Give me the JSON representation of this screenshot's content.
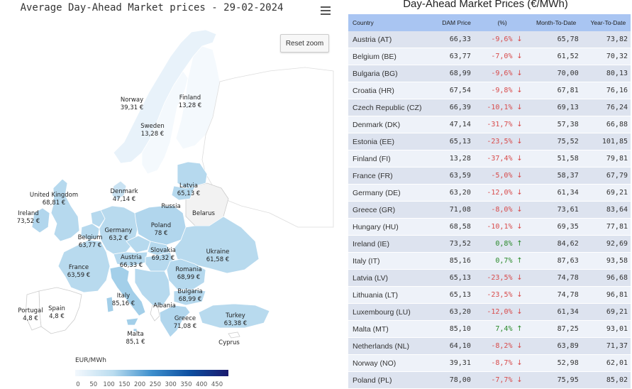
{
  "map": {
    "title": "Average Day-Ahead Market prices - 29-02-2024",
    "reset_zoom": "Reset zoom",
    "menu_icon": "hamburger-menu-icon",
    "legend": {
      "title": "EUR/MWh",
      "ticks": [
        "0",
        "50",
        "100",
        "150",
        "200",
        "250",
        "300",
        "350",
        "400",
        "450"
      ],
      "colors": [
        "#f3f8fd",
        "#b9dcef",
        "#3d8fcd",
        "#0d4ea0",
        "#1a1a6e"
      ]
    },
    "labels": [
      {
        "name": "Norway",
        "value": "39,31 €"
      },
      {
        "name": "Finland",
        "value": "13,28 €"
      },
      {
        "name": "Sweden",
        "value": "13,28 €"
      },
      {
        "name": "Latvia",
        "value": "65,13 €"
      },
      {
        "name": "Russia",
        "value": ""
      },
      {
        "name": "Belarus",
        "value": ""
      },
      {
        "name": "United Kingdom",
        "value": "68,81 €"
      },
      {
        "name": "Ireland",
        "value": "73,52 €"
      },
      {
        "name": "Denmark",
        "value": "47,14 €"
      },
      {
        "name": "Poland",
        "value": "78 €"
      },
      {
        "name": "Germany",
        "value": "63,2 €"
      },
      {
        "name": "Belgium",
        "value": "63,77 €"
      },
      {
        "name": "Ukraine",
        "value": "61,58 €"
      },
      {
        "name": "Slovakia",
        "value": "69,32 €"
      },
      {
        "name": "Austria",
        "value": "66,33 €"
      },
      {
        "name": "France",
        "value": "63,59 €"
      },
      {
        "name": "Romania",
        "value": "68,99 €"
      },
      {
        "name": "Bulgaria",
        "value": "68,99 €"
      },
      {
        "name": "Italy",
        "value": "85,16 €"
      },
      {
        "name": "Albania",
        "value": ""
      },
      {
        "name": "Portugal",
        "value": "4,8 €"
      },
      {
        "name": "Spain",
        "value": "4,8 €"
      },
      {
        "name": "Greece",
        "value": "71,08 €"
      },
      {
        "name": "Turkey",
        "value": "63,38 €"
      },
      {
        "name": "Malta",
        "value": "85,1 €"
      },
      {
        "name": "Cyprus",
        "value": ""
      }
    ]
  },
  "table": {
    "title": "Day-Ahead Market Prices (€/MWh)",
    "headers": {
      "country": "Country",
      "dam": "DAM Price",
      "pct": "(%)",
      "mtd": "Month-To-Date",
      "ytd": "Year-To-Date"
    },
    "rows": [
      {
        "country": "Austria (AT)",
        "dam": "66,33",
        "pct": "-9,6%",
        "dir": "down",
        "mtd": "65,78",
        "ytd": "73,82"
      },
      {
        "country": "Belgium (BE)",
        "dam": "63,77",
        "pct": "-7,0%",
        "dir": "down",
        "mtd": "61,52",
        "ytd": "70,32"
      },
      {
        "country": "Bulgaria (BG)",
        "dam": "68,99",
        "pct": "-9,6%",
        "dir": "down",
        "mtd": "70,00",
        "ytd": "80,13"
      },
      {
        "country": "Croatia (HR)",
        "dam": "67,54",
        "pct": "-9,8%",
        "dir": "down",
        "mtd": "67,81",
        "ytd": "76,16"
      },
      {
        "country": "Czech Republic (CZ)",
        "dam": "66,39",
        "pct": "-10,1%",
        "dir": "down",
        "mtd": "69,13",
        "ytd": "76,24"
      },
      {
        "country": "Denmark (DK)",
        "dam": "47,14",
        "pct": "-31,7%",
        "dir": "down",
        "mtd": "57,38",
        "ytd": "66,88"
      },
      {
        "country": "Estonia (EE)",
        "dam": "65,13",
        "pct": "-23,5%",
        "dir": "down",
        "mtd": "75,52",
        "ytd": "101,85"
      },
      {
        "country": "Finland (FI)",
        "dam": "13,28",
        "pct": "-37,4%",
        "dir": "down",
        "mtd": "51,58",
        "ytd": "79,81"
      },
      {
        "country": "France (FR)",
        "dam": "63,59",
        "pct": "-5,0%",
        "dir": "down",
        "mtd": "58,37",
        "ytd": "67,79"
      },
      {
        "country": "Germany (DE)",
        "dam": "63,20",
        "pct": "-12,0%",
        "dir": "down",
        "mtd": "61,34",
        "ytd": "69,21"
      },
      {
        "country": "Greece (GR)",
        "dam": "71,08",
        "pct": "-8,0%",
        "dir": "down",
        "mtd": "73,61",
        "ytd": "83,64"
      },
      {
        "country": "Hungary (HU)",
        "dam": "68,58",
        "pct": "-10,1%",
        "dir": "down",
        "mtd": "69,35",
        "ytd": "77,81"
      },
      {
        "country": "Ireland (IE)",
        "dam": "73,52",
        "pct": "0,8%",
        "dir": "up",
        "mtd": "84,62",
        "ytd": "92,69"
      },
      {
        "country": "Italy (IT)",
        "dam": "85,16",
        "pct": "0,7%",
        "dir": "up",
        "mtd": "87,63",
        "ytd": "93,58"
      },
      {
        "country": "Latvia (LV)",
        "dam": "65,13",
        "pct": "-23,5%",
        "dir": "down",
        "mtd": "74,78",
        "ytd": "96,68"
      },
      {
        "country": "Lithuania (LT)",
        "dam": "65,13",
        "pct": "-23,5%",
        "dir": "down",
        "mtd": "74,78",
        "ytd": "96,81"
      },
      {
        "country": "Luxembourg (LU)",
        "dam": "63,20",
        "pct": "-12,0%",
        "dir": "down",
        "mtd": "61,34",
        "ytd": "69,21"
      },
      {
        "country": "Malta (MT)",
        "dam": "85,10",
        "pct": "7,4%",
        "dir": "up",
        "mtd": "87,25",
        "ytd": "93,01"
      },
      {
        "country": "Netherlands (NL)",
        "dam": "64,10",
        "pct": "-8,2%",
        "dir": "down",
        "mtd": "63,89",
        "ytd": "71,37"
      },
      {
        "country": "Norway (NO)",
        "dam": "39,31",
        "pct": "-8,7%",
        "dir": "down",
        "mtd": "52,98",
        "ytd": "62,01"
      },
      {
        "country": "Poland (PL)",
        "dam": "78,00",
        "pct": "-7,7%",
        "dir": "down",
        "mtd": "75,95",
        "ytd": "85,02"
      }
    ]
  }
}
